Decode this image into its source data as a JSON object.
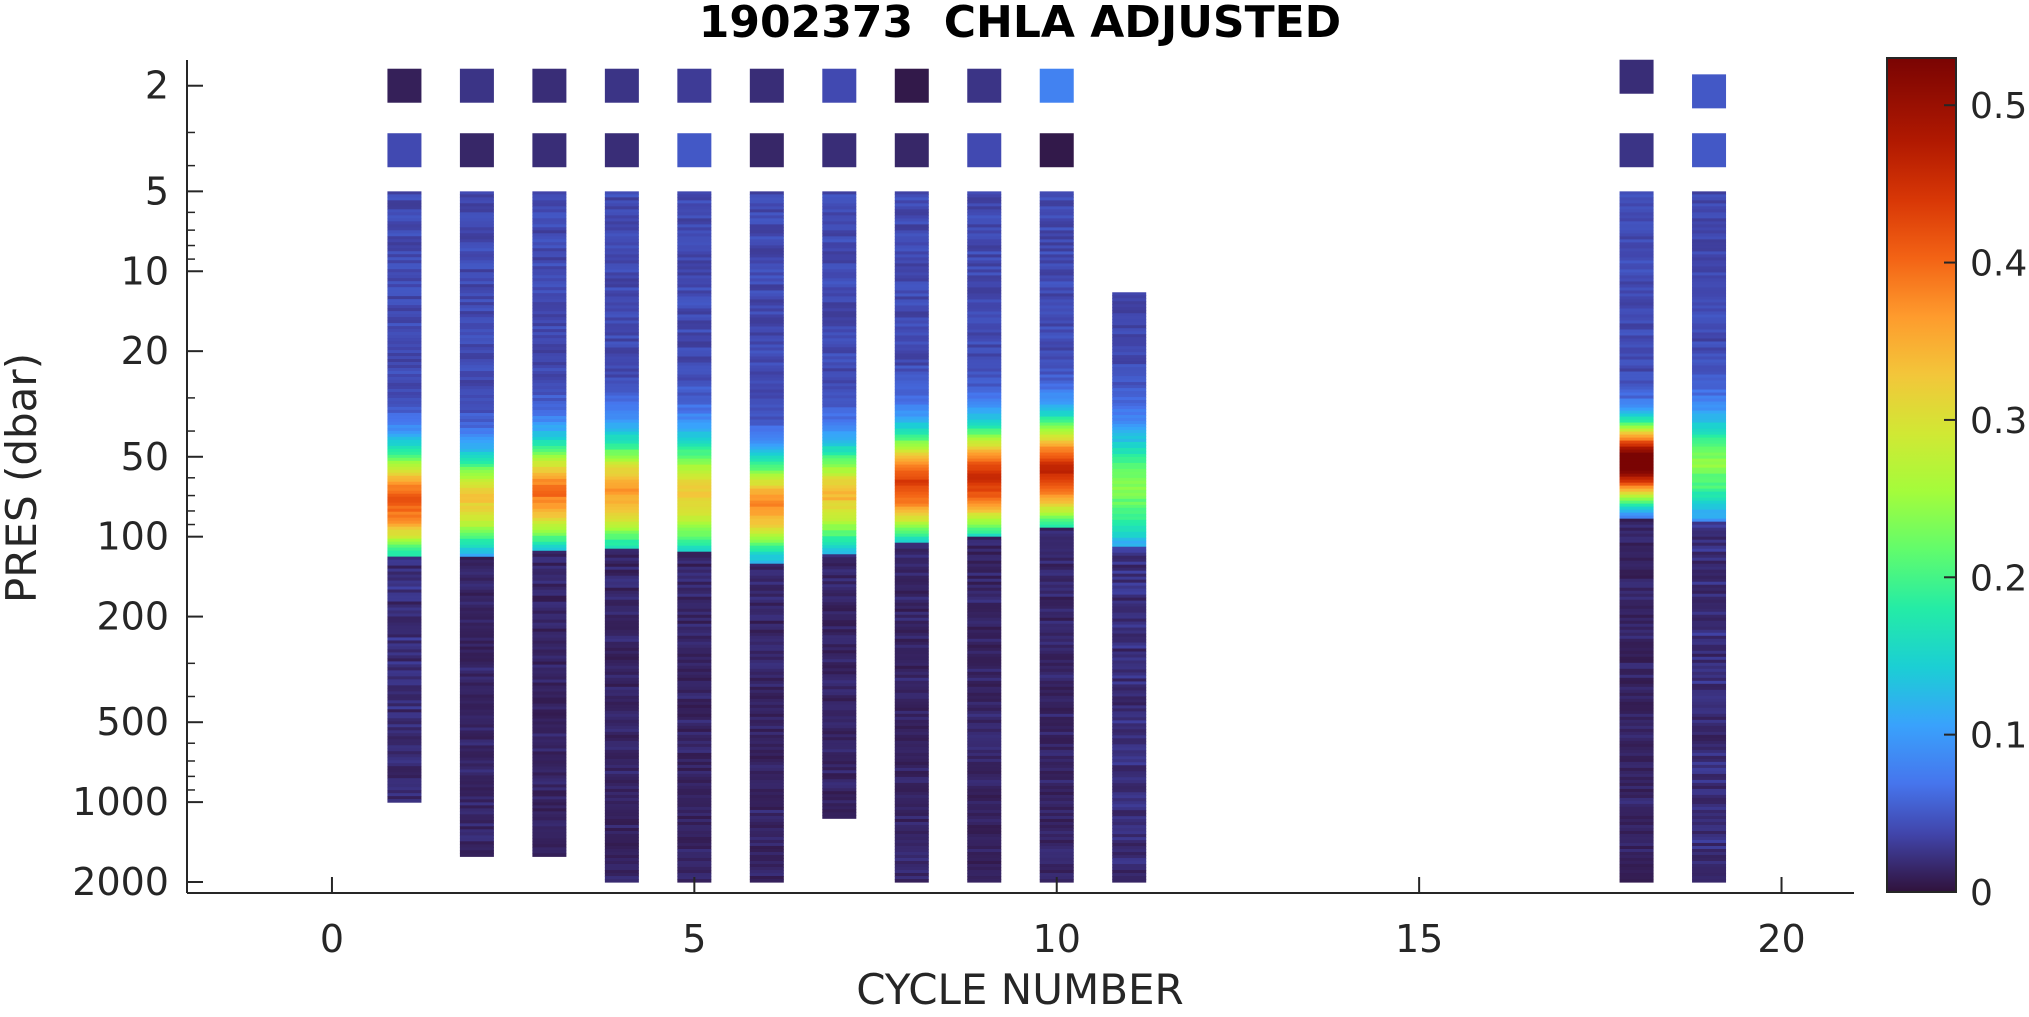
{
  "chart_data": {
    "type": "heatmap",
    "title": "1902373  CHLA ADJUSTED",
    "xlabel": "CYCLE NUMBER",
    "ylabel": "PRES (dbar)",
    "xlim": [
      -2,
      21
    ],
    "ylim": [
      1.6,
      2200
    ],
    "y_scale": "log",
    "y_direction": "reversed",
    "x_ticks": [
      0,
      5,
      10,
      15,
      20
    ],
    "x_tick_labels": [
      "0",
      "5",
      "10",
      "15",
      "20"
    ],
    "y_ticks": [
      2,
      5,
      10,
      20,
      50,
      100,
      200,
      500,
      1000,
      2000
    ],
    "y_tick_labels": [
      "2",
      "5",
      "10",
      "20",
      "50",
      "100",
      "200",
      "500",
      "1000",
      "2000"
    ],
    "colorbar": {
      "colormap": "turbo",
      "range": [
        0,
        0.53
      ],
      "ticks": [
        0,
        0.1,
        0.2,
        0.3,
        0.4,
        0.5
      ],
      "tick_labels": [
        "0",
        "0.1",
        "0.2",
        "0.3",
        "0.4",
        "0.5"
      ]
    },
    "profiles": [
      {
        "cycle": 1,
        "max_pres": 1000,
        "surface": [
          [
            2,
            0.01
          ],
          [
            3.5,
            0.04
          ]
        ],
        "start_pres": 5,
        "peak_pres": 75,
        "peak_value": 0.38,
        "peak_width": 0.14,
        "deep_value": 0.03
      },
      {
        "cycle": 2,
        "max_pres": 1600,
        "surface": [
          [
            2,
            0.025
          ],
          [
            3.5,
            0.015
          ]
        ],
        "start_pres": 5,
        "peak_pres": 75,
        "peak_value": 0.3,
        "peak_width": 0.13,
        "deep_value": 0.02
      },
      {
        "cycle": 3,
        "max_pres": 1600,
        "surface": [
          [
            2,
            0.02
          ],
          [
            3.5,
            0.02
          ]
        ],
        "start_pres": 5,
        "peak_pres": 70,
        "peak_value": 0.36,
        "peak_width": 0.14,
        "deep_value": 0.02
      },
      {
        "cycle": 4,
        "max_pres": 2000,
        "surface": [
          [
            2,
            0.025
          ],
          [
            3.5,
            0.02
          ]
        ],
        "start_pres": 5,
        "peak_pres": 70,
        "peak_value": 0.33,
        "peak_width": 0.15,
        "deep_value": 0.02
      },
      {
        "cycle": 5,
        "max_pres": 2000,
        "surface": [
          [
            2,
            0.03
          ],
          [
            3.5,
            0.05
          ]
        ],
        "start_pres": 5,
        "peak_pres": 72,
        "peak_value": 0.29,
        "peak_width": 0.16,
        "deep_value": 0.02
      },
      {
        "cycle": 6,
        "max_pres": 2000,
        "surface": [
          [
            2,
            0.02
          ],
          [
            3.5,
            0.015
          ]
        ],
        "start_pres": 5,
        "peak_pres": 78,
        "peak_value": 0.34,
        "peak_width": 0.13,
        "deep_value": 0.02
      },
      {
        "cycle": 7,
        "max_pres": 1150,
        "surface": [
          [
            2,
            0.04
          ],
          [
            3.5,
            0.02
          ]
        ],
        "start_pres": 5,
        "peak_pres": 72,
        "peak_value": 0.3,
        "peak_width": 0.14,
        "deep_value": 0.02
      },
      {
        "cycle": 8,
        "max_pres": 2000,
        "surface": [
          [
            2,
            0.005
          ],
          [
            3.5,
            0.015
          ]
        ],
        "start_pres": 5,
        "peak_pres": 65,
        "peak_value": 0.4,
        "peak_width": 0.14,
        "deep_value": 0.02
      },
      {
        "cycle": 9,
        "max_pres": 2000,
        "surface": [
          [
            2,
            0.025
          ],
          [
            3.5,
            0.04
          ]
        ],
        "start_pres": 5,
        "peak_pres": 62,
        "peak_value": 0.42,
        "peak_width": 0.14,
        "deep_value": 0.02
      },
      {
        "cycle": 10,
        "max_pres": 2000,
        "surface": [
          [
            2,
            0.08
          ],
          [
            3.5,
            0.005
          ]
        ],
        "start_pres": 5,
        "peak_pres": 58,
        "peak_value": 0.42,
        "peak_width": 0.14,
        "deep_value": 0.02
      },
      {
        "cycle": 11,
        "max_pres": 2000,
        "surface": [],
        "start_pres": 12,
        "peak_pres": 68,
        "peak_value": 0.2,
        "peak_width": 0.16,
        "deep_value": 0.03
      },
      {
        "cycle": 18,
        "max_pres": 2000,
        "surface": [
          [
            1.85,
            0.02
          ],
          [
            3.5,
            0.025
          ]
        ],
        "start_pres": 5,
        "peak_pres": 53,
        "peak_value": 0.53,
        "peak_width": 0.1,
        "deep_value": 0.02
      },
      {
        "cycle": 19,
        "max_pres": 2000,
        "surface": [
          [
            2.1,
            0.05
          ],
          [
            3.5,
            0.05
          ]
        ],
        "start_pres": 5,
        "peak_pres": 55,
        "peak_value": 0.2,
        "peak_width": 0.14,
        "deep_value": 0.03
      }
    ]
  }
}
